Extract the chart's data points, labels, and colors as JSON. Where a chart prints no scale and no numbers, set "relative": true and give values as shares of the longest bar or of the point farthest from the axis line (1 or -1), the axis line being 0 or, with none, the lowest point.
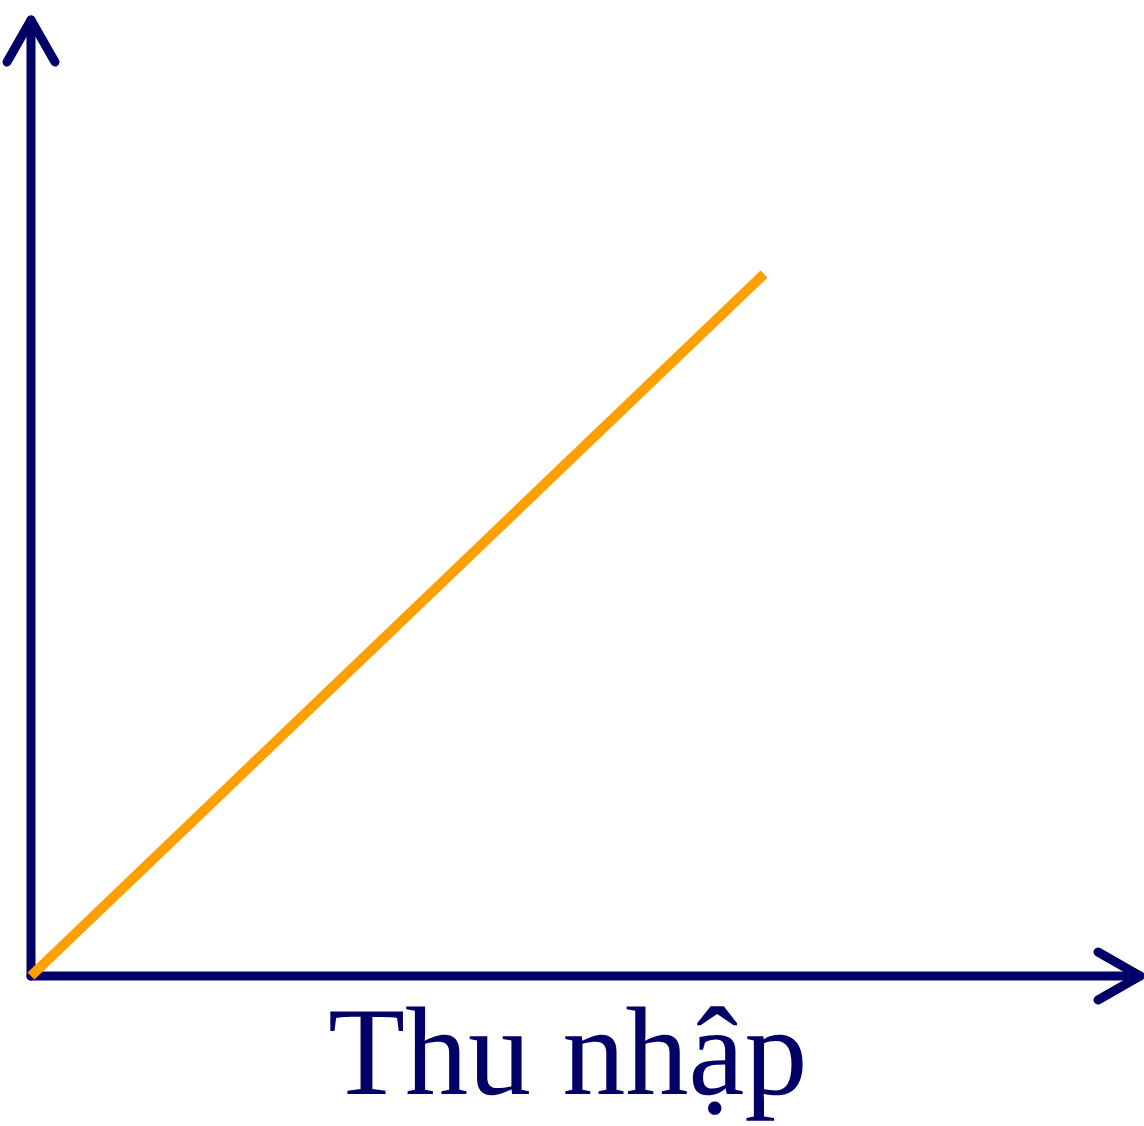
{
  "chart_data": {
    "type": "line",
    "xlabel": "Thu nhập",
    "categories": [
      null,
      null
    ],
    "values": [
      0,
      1
    ],
    "color": "#ffa000",
    "relative": true
  }
}
